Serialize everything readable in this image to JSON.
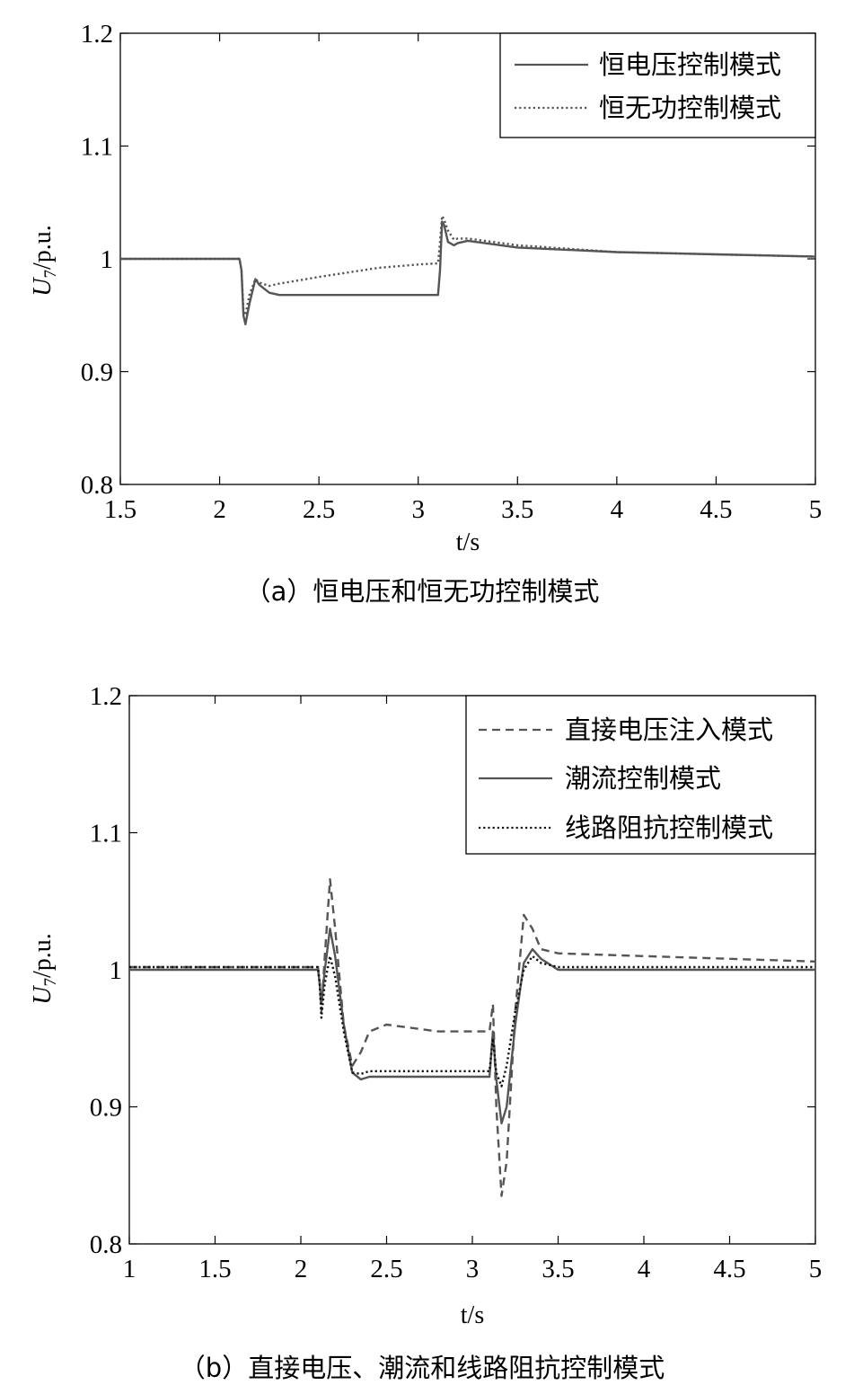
{
  "chart_data": [
    {
      "type": "line",
      "caption": "（a）恒电压和恒无功控制模式",
      "xlabel": "t/s",
      "ylabel_main": "U",
      "ylabel_sub": "7",
      "ylabel_unit": "/p.u.",
      "xlim": [
        1.5,
        5
      ],
      "ylim": [
        0.8,
        1.2
      ],
      "xticks": [
        1.5,
        2,
        2.5,
        3,
        3.5,
        4,
        4.5,
        5
      ],
      "xtick_labels": [
        "1.5",
        "2",
        "2.5",
        "3",
        "3.5",
        "4",
        "4.5",
        "5"
      ],
      "yticks": [
        0.8,
        0.9,
        1.0,
        1.1,
        1.2
      ],
      "ytick_labels": [
        "0.8",
        "0.9",
        "1",
        "1.1",
        "1.2"
      ],
      "legend_position": "top-right",
      "series": [
        {
          "name": "恒电压控制模式",
          "style": "solid",
          "color": "#555555",
          "x": [
            1.5,
            2.1,
            2.11,
            2.12,
            2.13,
            2.15,
            2.18,
            2.2,
            2.25,
            2.3,
            2.5,
            2.8,
            3.0,
            3.1,
            3.11,
            3.12,
            3.13,
            3.15,
            3.18,
            3.2,
            3.25,
            3.5,
            4.0,
            4.5,
            5.0
          ],
          "y": [
            1.0,
            1.0,
            0.99,
            0.95,
            0.942,
            0.96,
            0.982,
            0.977,
            0.97,
            0.968,
            0.968,
            0.968,
            0.968,
            0.968,
            0.99,
            1.033,
            1.03,
            1.015,
            1.012,
            1.014,
            1.016,
            1.01,
            1.006,
            1.004,
            1.002
          ]
        },
        {
          "name": "恒无功控制模式",
          "style": "dotted",
          "color": "#555555",
          "x": [
            1.5,
            2.1,
            2.11,
            2.12,
            2.13,
            2.15,
            2.18,
            2.2,
            2.25,
            2.3,
            2.5,
            2.8,
            3.0,
            3.1,
            3.11,
            3.12,
            3.13,
            3.15,
            3.18,
            3.2,
            3.25,
            3.5,
            4.0,
            4.5,
            5.0
          ],
          "y": [
            1.0,
            1.0,
            0.99,
            0.955,
            0.95,
            0.968,
            0.982,
            0.979,
            0.976,
            0.978,
            0.984,
            0.992,
            0.995,
            0.996,
            1.015,
            1.038,
            1.035,
            1.025,
            1.017,
            1.018,
            1.018,
            1.012,
            1.006,
            1.004,
            1.002
          ]
        }
      ]
    },
    {
      "type": "line",
      "caption": "（b）直接电压、潮流和线路阻抗控制模式",
      "xlabel": "t/s",
      "ylabel_main": "U",
      "ylabel_sub": "7",
      "ylabel_unit": "/p.u.",
      "xlim": [
        1,
        5
      ],
      "ylim": [
        0.8,
        1.2
      ],
      "xticks": [
        1,
        1.5,
        2,
        2.5,
        3,
        3.5,
        4,
        4.5,
        5
      ],
      "xtick_labels": [
        "1",
        "1.5",
        "2",
        "2.5",
        "3",
        "3.5",
        "4",
        "4.5",
        "5"
      ],
      "yticks": [
        0.8,
        0.9,
        1.0,
        1.1,
        1.2
      ],
      "ytick_labels": [
        "0.8",
        "0.9",
        "1",
        "1.1",
        "1.2"
      ],
      "legend_position": "top-right",
      "series": [
        {
          "name": "直接电压注入模式",
          "style": "dashed",
          "color": "#555555",
          "x": [
            1.0,
            2.1,
            2.11,
            2.12,
            2.14,
            2.17,
            2.2,
            2.25,
            2.3,
            2.35,
            2.4,
            2.5,
            2.8,
            3.0,
            3.1,
            3.12,
            3.14,
            3.17,
            3.2,
            3.25,
            3.3,
            3.35,
            3.4,
            3.5,
            4.0,
            4.5,
            5.0
          ],
          "y": [
            1.002,
            1.002,
            0.99,
            0.97,
            1.01,
            1.066,
            1.03,
            0.96,
            0.93,
            0.94,
            0.955,
            0.96,
            0.955,
            0.955,
            0.955,
            0.975,
            0.9,
            0.835,
            0.86,
            0.97,
            1.04,
            1.03,
            1.015,
            1.012,
            1.01,
            1.008,
            1.006
          ]
        },
        {
          "name": "潮流控制模式",
          "style": "solid",
          "color": "#555555",
          "x": [
            1.0,
            2.1,
            2.11,
            2.12,
            2.14,
            2.17,
            2.2,
            2.25,
            2.3,
            2.35,
            2.4,
            2.5,
            2.8,
            3.0,
            3.1,
            3.12,
            3.14,
            3.17,
            3.2,
            3.25,
            3.3,
            3.35,
            3.4,
            3.5,
            4.0,
            4.5,
            5.0
          ],
          "y": [
            1.0,
            1.0,
            0.99,
            0.975,
            1.0,
            1.03,
            1.01,
            0.96,
            0.925,
            0.92,
            0.922,
            0.922,
            0.922,
            0.922,
            0.922,
            0.955,
            0.92,
            0.888,
            0.9,
            0.96,
            1.005,
            1.015,
            1.008,
            1.0,
            1.0,
            1.0,
            1.0
          ]
        },
        {
          "name": "线路阻抗控制模式",
          "style": "dotted",
          "color": "#111111",
          "x": [
            1.0,
            2.1,
            2.11,
            2.12,
            2.14,
            2.17,
            2.2,
            2.25,
            2.3,
            2.35,
            2.4,
            2.5,
            2.8,
            3.0,
            3.1,
            3.12,
            3.14,
            3.17,
            3.2,
            3.25,
            3.3,
            3.35,
            3.4,
            3.5,
            4.0,
            4.5,
            5.0
          ],
          "y": [
            1.002,
            1.002,
            0.99,
            0.965,
            0.99,
            1.01,
            0.995,
            0.955,
            0.925,
            0.924,
            0.926,
            0.926,
            0.926,
            0.926,
            0.926,
            0.95,
            0.925,
            0.915,
            0.93,
            0.97,
            1.0,
            1.01,
            1.005,
            1.002,
            1.002,
            1.002,
            1.002
          ]
        }
      ]
    }
  ]
}
